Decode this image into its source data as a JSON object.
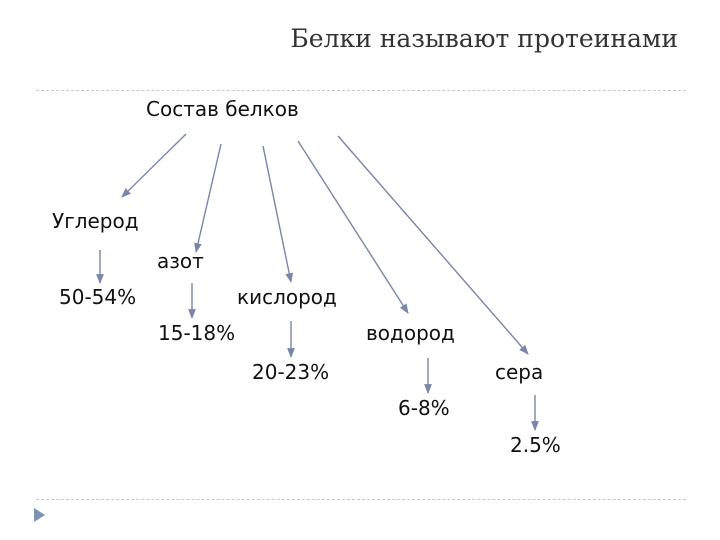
{
  "slide": {
    "title": "Белки  называют протеинами"
  },
  "diagram": {
    "root": "Состав белков",
    "elements": [
      {
        "name": "Углерод",
        "percent": "50-54%"
      },
      {
        "name": "азот",
        "percent": "15-18%"
      },
      {
        "name": "кислород",
        "percent": "20-23%"
      },
      {
        "name": "водород",
        "percent": "6-8%"
      },
      {
        "name": "сера",
        "percent": "2.5%"
      }
    ]
  },
  "colors": {
    "arrow": "#7a85a8",
    "nav_icon": "#7a93b3",
    "rule": "#c9c9c9"
  },
  "icons": {
    "nav": "triangle-right-icon"
  }
}
